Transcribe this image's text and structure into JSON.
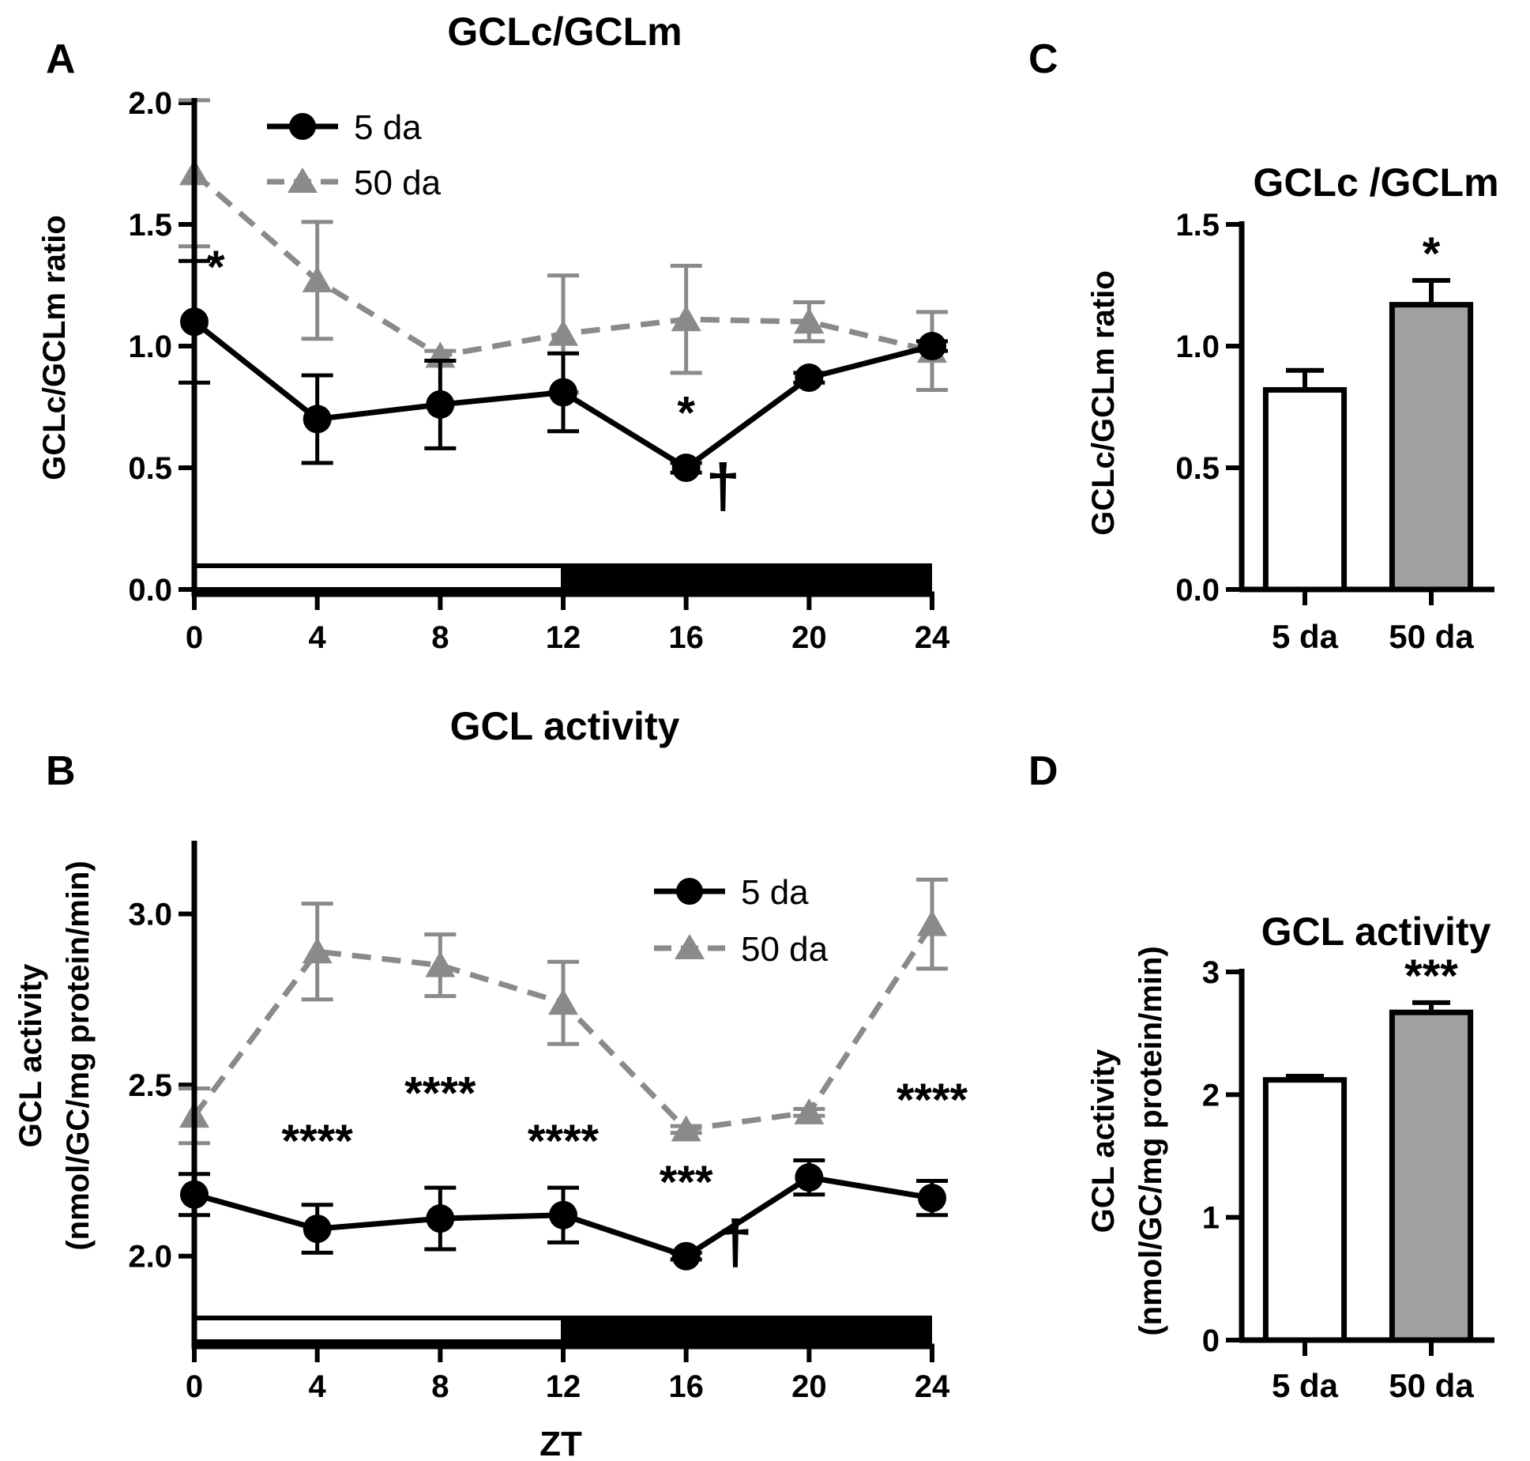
{
  "colors": {
    "black": "#000000",
    "gray": "#8a8a8a",
    "bar_white": "#ffffff",
    "bar_gray": "#a0a0a0"
  },
  "chart_data": [
    {
      "panel": "A",
      "type": "line",
      "title": "GCLc/GCLm",
      "ylabel": "GCLc/GCLm ratio",
      "xlabel": "",
      "x": [
        0,
        4,
        8,
        12,
        16,
        20,
        24
      ],
      "x_ticks": [
        "0",
        "4",
        "8",
        "12",
        "16",
        "20",
        "24"
      ],
      "ylim": [
        0,
        2.0
      ],
      "y_ticks": [
        "0.0",
        "0.5",
        "1.0",
        "1.5",
        "2.0"
      ],
      "legend_position": "top-left",
      "light_dark_bar": {
        "light": [
          0,
          12
        ],
        "dark": [
          12,
          24
        ]
      },
      "series": [
        {
          "name": "5 da",
          "marker": "circle",
          "line": "solid",
          "color": "#000000",
          "values": [
            1.1,
            0.7,
            0.76,
            0.81,
            0.5,
            0.87,
            1.0
          ],
          "errors": [
            0.25,
            0.18,
            0.18,
            0.16,
            0.02,
            0.02,
            0.02
          ]
        },
        {
          "name": "50 da",
          "marker": "triangle",
          "line": "dashed",
          "color": "#8a8a8a",
          "values": [
            1.71,
            1.27,
            0.96,
            1.05,
            1.11,
            1.1,
            0.98
          ],
          "errors": [
            0.3,
            0.24,
            0.02,
            0.24,
            0.22,
            0.08,
            0.16
          ]
        }
      ],
      "annotations": [
        {
          "x": 0.7,
          "y": 1.26,
          "text": "*"
        },
        {
          "x": 16,
          "y": 0.66,
          "text": "*"
        },
        {
          "x": 17.2,
          "y": 0.34,
          "text": "†"
        }
      ]
    },
    {
      "panel": "B",
      "type": "line",
      "title": "GCL activity",
      "ylabel_lines": [
        "GCL activity",
        "(nmol/GC/mg protein/min)"
      ],
      "xlabel": "ZT",
      "x": [
        0,
        4,
        8,
        12,
        16,
        20,
        24
      ],
      "x_ticks": [
        "0",
        "4",
        "8",
        "12",
        "16",
        "20",
        "24"
      ],
      "ylim": [
        1.75,
        3.2
      ],
      "y_ticks": [
        "2.0",
        "2.5",
        "3.0"
      ],
      "y_tick_values": [
        2.0,
        2.5,
        3.0
      ],
      "legend_position": "top-right",
      "light_dark_bar": {
        "light": [
          0,
          12
        ],
        "dark": [
          12,
          24
        ]
      },
      "series": [
        {
          "name": "5 da",
          "marker": "circle",
          "line": "solid",
          "color": "#000000",
          "values": [
            2.18,
            2.08,
            2.11,
            2.12,
            2.0,
            2.23,
            2.17
          ],
          "errors": [
            0.06,
            0.07,
            0.09,
            0.08,
            0.01,
            0.05,
            0.05
          ]
        },
        {
          "name": "50 da",
          "marker": "triangle",
          "line": "dashed",
          "color": "#8a8a8a",
          "values": [
            2.41,
            2.89,
            2.85,
            2.74,
            2.37,
            2.42,
            2.97
          ],
          "errors": [
            0.08,
            0.14,
            0.09,
            0.12,
            0.01,
            0.01,
            0.13
          ]
        }
      ],
      "annotations": [
        {
          "x": 4,
          "y": 2.29,
          "text": "****"
        },
        {
          "x": 8,
          "y": 2.43,
          "text": "****"
        },
        {
          "x": 12,
          "y": 2.29,
          "text": "****"
        },
        {
          "x": 16,
          "y": 2.17,
          "text": "***"
        },
        {
          "x": 24,
          "y": 2.41,
          "text": "****"
        },
        {
          "x": 17.6,
          "y": 1.98,
          "text": "†"
        }
      ]
    },
    {
      "panel": "C",
      "type": "bar",
      "title": "GCLc /GCLm",
      "ylabel": "GCLc/GCLm ratio",
      "categories": [
        "5 da",
        "50 da"
      ],
      "values": [
        0.82,
        1.17
      ],
      "errors": [
        0.08,
        0.1
      ],
      "fills": [
        "#ffffff",
        "#a0a0a0"
      ],
      "ylim": [
        0,
        1.5
      ],
      "y_ticks": [
        "0.0",
        "0.5",
        "1.0",
        "1.5"
      ],
      "annotations": [
        {
          "category": 1,
          "text": "*"
        }
      ]
    },
    {
      "panel": "D",
      "type": "bar",
      "title": "GCL activity",
      "ylabel_lines": [
        "GCL activity",
        "(nmol/GC/mg protein/min)"
      ],
      "categories": [
        "5 da",
        "50 da"
      ],
      "values": [
        2.12,
        2.67
      ],
      "errors": [
        0.03,
        0.08
      ],
      "fills": [
        "#ffffff",
        "#a0a0a0"
      ],
      "ylim": [
        0,
        3
      ],
      "y_ticks": [
        "0",
        "1",
        "2",
        "3"
      ],
      "annotations": [
        {
          "category": 1,
          "text": "***"
        }
      ]
    }
  ]
}
